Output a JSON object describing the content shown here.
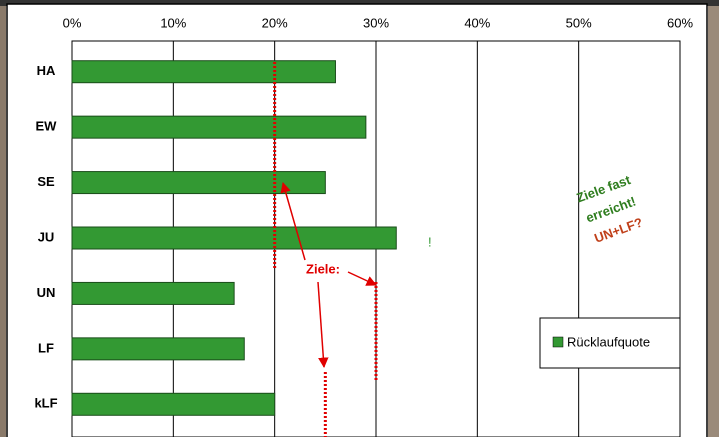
{
  "chart_data": {
    "type": "hbar",
    "categories": [
      "HA",
      "EW",
      "SE",
      "JU",
      "UN",
      "LF",
      "kLF"
    ],
    "series": [
      {
        "name": "Rücklaufquote",
        "color": "#339933",
        "values": [
          26,
          29,
          25,
          32,
          16,
          17,
          20
        ]
      }
    ],
    "xlim": [
      0,
      60
    ],
    "xticks": [
      {
        "value": 0,
        "label": "0%"
      },
      {
        "value": 10,
        "label": "10%"
      },
      {
        "value": 20,
        "label": "20%"
      },
      {
        "value": 30,
        "label": "30%"
      },
      {
        "value": 40,
        "label": "40%"
      },
      {
        "value": 50,
        "label": "50%"
      },
      {
        "value": 60,
        "label": "60%"
      }
    ],
    "grid": true,
    "legend": "right",
    "target_lines": [
      20,
      30,
      25
    ],
    "target_label": "Ziele:",
    "mark_label": "!",
    "callout": [
      "Ziele fast",
      "erreicht!",
      "UN+LF?"
    ]
  }
}
